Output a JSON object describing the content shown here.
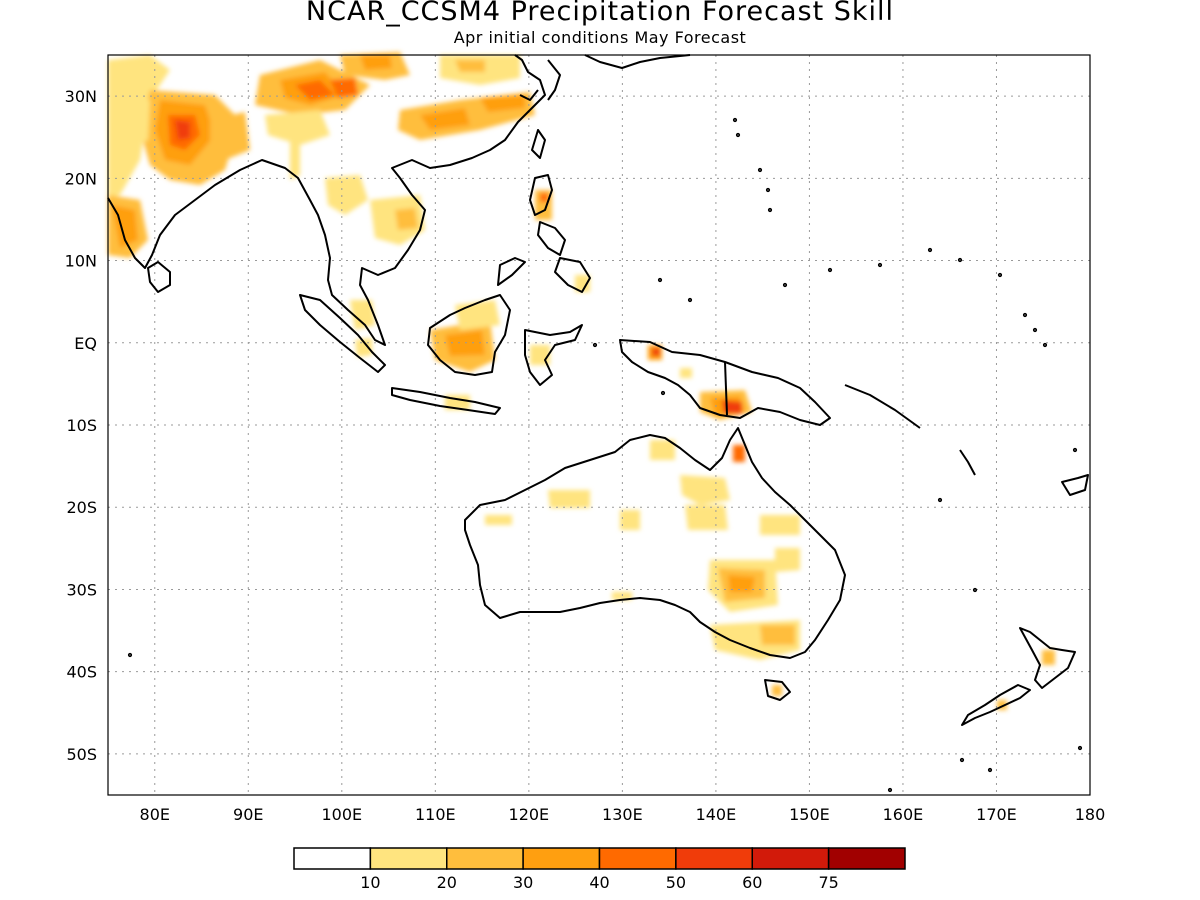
{
  "title": "NCAR_CCSM4 Precipitation Forecast Skill",
  "subtitle": "Apr initial conditions  May Forecast",
  "map": {
    "lon_range": [
      75,
      180
    ],
    "lat_range": [
      -55,
      35
    ],
    "lon_ticks": [
      80,
      90,
      100,
      110,
      120,
      130,
      140,
      150,
      160,
      170,
      180
    ],
    "lat_ticks": [
      30,
      20,
      10,
      0,
      -10,
      -20,
      -30,
      -40,
      -50
    ],
    "lon_labels": [
      "80E",
      "90E",
      "100E",
      "110E",
      "120E",
      "130E",
      "140E",
      "150E",
      "160E",
      "170E",
      "180"
    ],
    "lat_labels": [
      "30N",
      "20N",
      "10N",
      "EQ",
      "10S",
      "20S",
      "30S",
      "40S",
      "50S"
    ],
    "grid": true
  },
  "colorbar": {
    "colors": [
      "#ffffff",
      "#ffe47f",
      "#ffbe3d",
      "#ff9f10",
      "#ff6a00",
      "#f03c0a",
      "#d21a0a",
      "#a10000"
    ],
    "labels": [
      "10",
      "20",
      "30",
      "40",
      "50",
      "60",
      "75"
    ]
  }
}
